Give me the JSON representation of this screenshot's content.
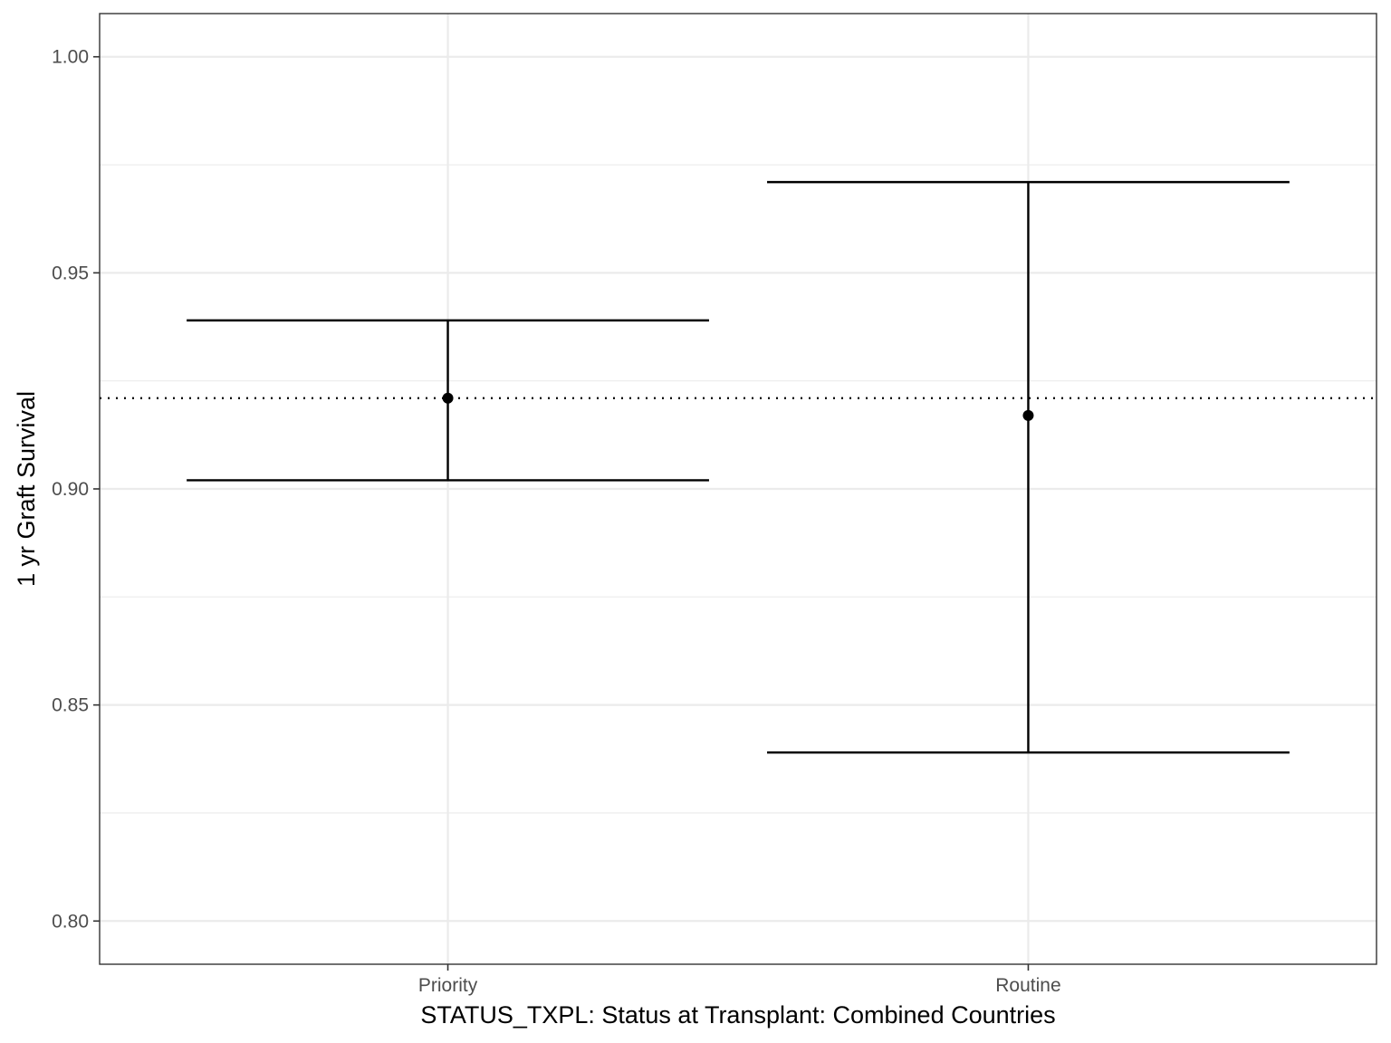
{
  "chart_data": {
    "type": "errorbar",
    "title": "",
    "xlabel": "STATUS_TXPL: Status at Transplant: Combined Countries",
    "ylabel": "1 yr Graft Survival",
    "categories": [
      "Priority",
      "Routine"
    ],
    "points": [
      {
        "category": "Priority",
        "estimate": 0.921,
        "lower": 0.902,
        "upper": 0.939
      },
      {
        "category": "Routine",
        "estimate": 0.917,
        "lower": 0.839,
        "upper": 0.971
      }
    ],
    "reference_line": {
      "value": 0.921,
      "style": "dotted"
    },
    "ylim": [
      0.79,
      1.01
    ],
    "yticks": [
      0.8,
      0.85,
      0.9,
      0.95,
      1.0
    ],
    "ytick_labels": [
      "0.80",
      "0.85",
      "0.90",
      "0.95",
      "1.00"
    ],
    "grid": true,
    "legend": "none",
    "colors": {
      "marks": "#000000",
      "grid": "#ebebeb",
      "panel_border": "#333333",
      "tick_text": "#4d4d4d"
    }
  }
}
